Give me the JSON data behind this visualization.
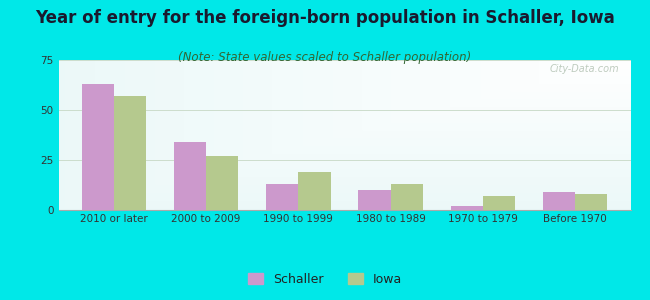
{
  "title": "Year of entry for the foreign-born population in Schaller, Iowa",
  "subtitle": "(Note: State values scaled to Schaller population)",
  "categories": [
    "2010 or later",
    "2000 to 2009",
    "1990 to 1999",
    "1980 to 1989",
    "1970 to 1979",
    "Before 1970"
  ],
  "schaller_values": [
    63,
    34,
    13,
    10,
    2,
    9
  ],
  "iowa_values": [
    57,
    27,
    19,
    13,
    7,
    8
  ],
  "schaller_color": "#cc99cc",
  "iowa_color": "#b5c98e",
  "ylim": [
    0,
    75
  ],
  "yticks": [
    0,
    25,
    50,
    75
  ],
  "bar_width": 0.35,
  "outer_background": "#00e8e8",
  "grid_color": "#ccddcc",
  "title_fontsize": 12,
  "subtitle_fontsize": 8.5,
  "tick_fontsize": 7.5,
  "legend_labels": [
    "Schaller",
    "Iowa"
  ],
  "watermark": "City-Data.com"
}
